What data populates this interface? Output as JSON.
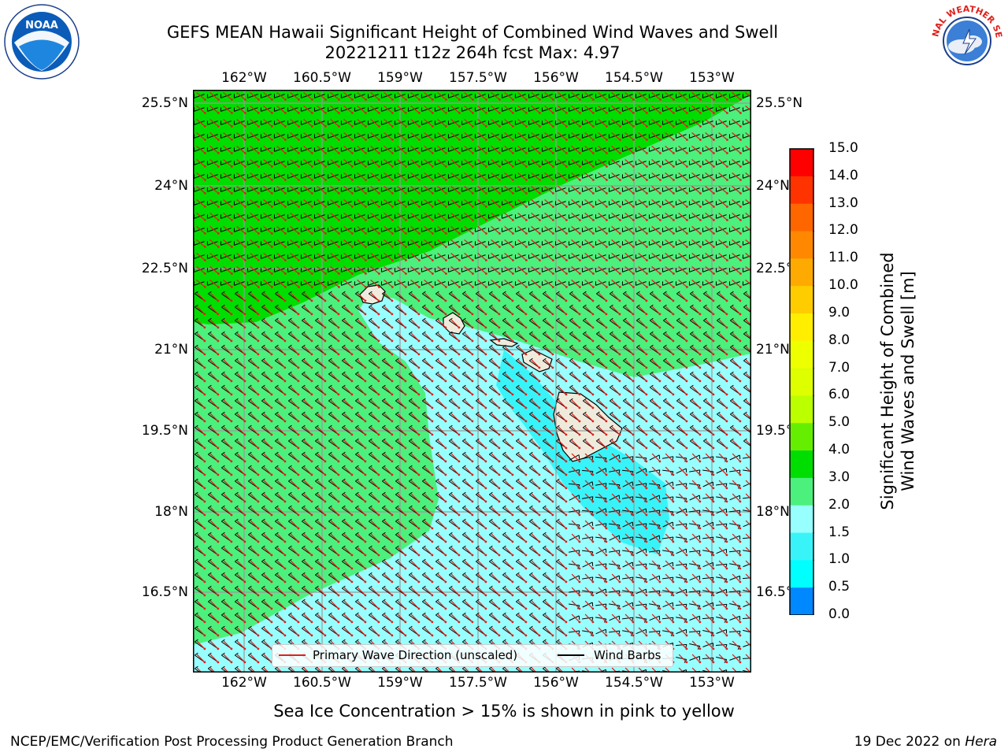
{
  "header": {
    "title_line1": "GEFS MEAN Hawaii Significant Height of Combined Wind Waves and Swell",
    "title_line2": "20221211 t12z 264h fcst   Max: 4.97"
  },
  "map": {
    "lon_labels": [
      "162°W",
      "160.5°W",
      "159°W",
      "157.5°W",
      "156°W",
      "154.5°W",
      "153°W"
    ],
    "lat_labels": [
      "25.5°N",
      "24°N",
      "22.5°N",
      "21°N",
      "19.5°N",
      "18°N",
      "16.5°N"
    ],
    "colors": {
      "green_5_6": "#00dd00",
      "green_3_4": "#4cf07c",
      "cyan_2_3": "#98ffff",
      "cyan_15_2": "#38f4f8",
      "land": "#efebdc",
      "wave_arrow": "#e0201c",
      "wind_barb": "#000000"
    },
    "legend": {
      "wave_label": "Primary Wave Direction (unscaled)",
      "barb_label": "Wind Barbs"
    }
  },
  "colorbar": {
    "title_line1": "Significant Height of Combined",
    "title_line2": "Wind Waves and Swell [m]",
    "ticks": [
      "15.0",
      "14.0",
      "13.0",
      "12.0",
      "11.0",
      "10.0",
      "9.0",
      "8.0",
      "7.0",
      "6.0",
      "5.0",
      "4.0",
      "3.0",
      "2.0",
      "1.5",
      "1.0",
      "0.5",
      "0.0"
    ],
    "colors": [
      "#ff0000",
      "#ff3300",
      "#ff6600",
      "#ff8800",
      "#ffaa00",
      "#ffcc00",
      "#ffee00",
      "#eeff00",
      "#ddff00",
      "#bbff00",
      "#66ee00",
      "#00dd00",
      "#4cf07c",
      "#98ffff",
      "#38f4f8",
      "#00ffff",
      "#0088ff",
      "#0000ff"
    ]
  },
  "notes": {
    "sea_ice": "Sea Ice Concentration > 15% is shown in pink to yellow"
  },
  "footer": {
    "left": "NCEP/EMC/Verification Post Processing Product Generation Branch",
    "date": "19 Dec 2022 on ",
    "host": "Hera"
  },
  "logos": {
    "noaa_text": "NOAA",
    "nws_text": "NATIONAL WEATHER SERVICE"
  }
}
